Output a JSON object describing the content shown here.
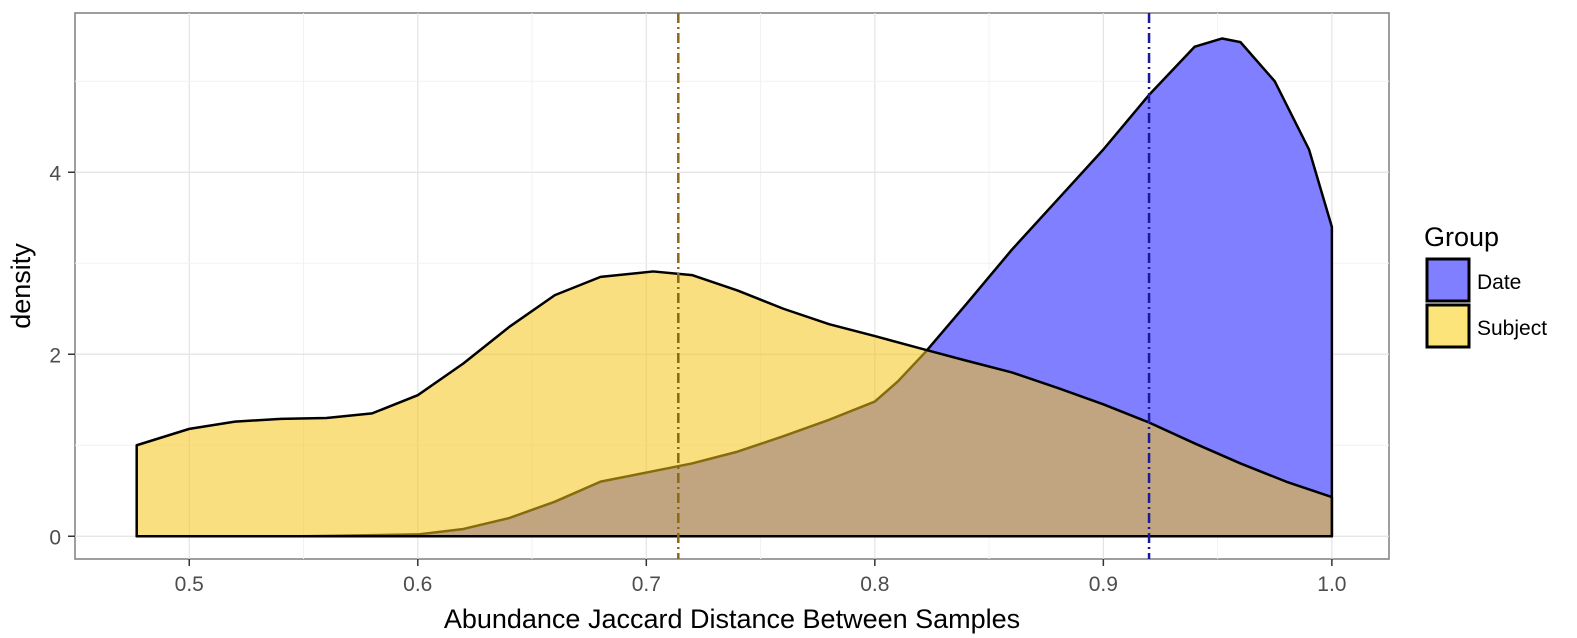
{
  "chart_data": {
    "type": "area",
    "title": "",
    "xlabel": "Abundance Jaccard Distance Between Samples",
    "ylabel": "density",
    "xlim": [
      0.45,
      1.025
    ],
    "ylim": [
      -0.25,
      5.75
    ],
    "x_ticks": [
      0.5,
      0.6,
      0.7,
      0.8,
      0.9,
      1.0
    ],
    "x_tick_labels": [
      "0.5",
      "0.6",
      "0.7",
      "0.8",
      "0.9",
      "1.0"
    ],
    "y_ticks": [
      0,
      2,
      4
    ],
    "y_tick_labels": [
      "0",
      "2",
      "4"
    ],
    "grid": true,
    "legend": {
      "title": "Group",
      "position": "right"
    },
    "series": [
      {
        "name": "Date",
        "color": "#7f7fff",
        "mean_line": 0.92,
        "mean_line_color": "#1a1a99",
        "points": [
          [
            0.477,
            0.0
          ],
          [
            0.55,
            0.0
          ],
          [
            0.6,
            0.02
          ],
          [
            0.62,
            0.08
          ],
          [
            0.64,
            0.2
          ],
          [
            0.66,
            0.38
          ],
          [
            0.68,
            0.6
          ],
          [
            0.7,
            0.7
          ],
          [
            0.72,
            0.8
          ],
          [
            0.74,
            0.93
          ],
          [
            0.76,
            1.1
          ],
          [
            0.78,
            1.28
          ],
          [
            0.8,
            1.48
          ],
          [
            0.81,
            1.7
          ],
          [
            0.822,
            2.02
          ],
          [
            0.84,
            2.55
          ],
          [
            0.86,
            3.15
          ],
          [
            0.88,
            3.7
          ],
          [
            0.9,
            4.25
          ],
          [
            0.92,
            4.85
          ],
          [
            0.94,
            5.38
          ],
          [
            0.952,
            5.47
          ],
          [
            0.96,
            5.43
          ],
          [
            0.975,
            5.0
          ],
          [
            0.99,
            4.25
          ],
          [
            1.0,
            3.4
          ]
        ]
      },
      {
        "name": "Subject",
        "color": "#f5c518",
        "mean_line": 0.714,
        "mean_line_color": "#8b6914",
        "points": [
          [
            0.477,
            1.0
          ],
          [
            0.5,
            1.18
          ],
          [
            0.52,
            1.26
          ],
          [
            0.54,
            1.29
          ],
          [
            0.56,
            1.3
          ],
          [
            0.58,
            1.35
          ],
          [
            0.6,
            1.55
          ],
          [
            0.62,
            1.9
          ],
          [
            0.64,
            2.3
          ],
          [
            0.66,
            2.65
          ],
          [
            0.68,
            2.85
          ],
          [
            0.703,
            2.91
          ],
          [
            0.72,
            2.87
          ],
          [
            0.74,
            2.7
          ],
          [
            0.76,
            2.5
          ],
          [
            0.78,
            2.33
          ],
          [
            0.8,
            2.2
          ],
          [
            0.822,
            2.05
          ],
          [
            0.84,
            1.93
          ],
          [
            0.86,
            1.8
          ],
          [
            0.88,
            1.63
          ],
          [
            0.9,
            1.45
          ],
          [
            0.92,
            1.25
          ],
          [
            0.94,
            1.02
          ],
          [
            0.96,
            0.8
          ],
          [
            0.98,
            0.6
          ],
          [
            1.0,
            0.43
          ]
        ]
      }
    ]
  }
}
